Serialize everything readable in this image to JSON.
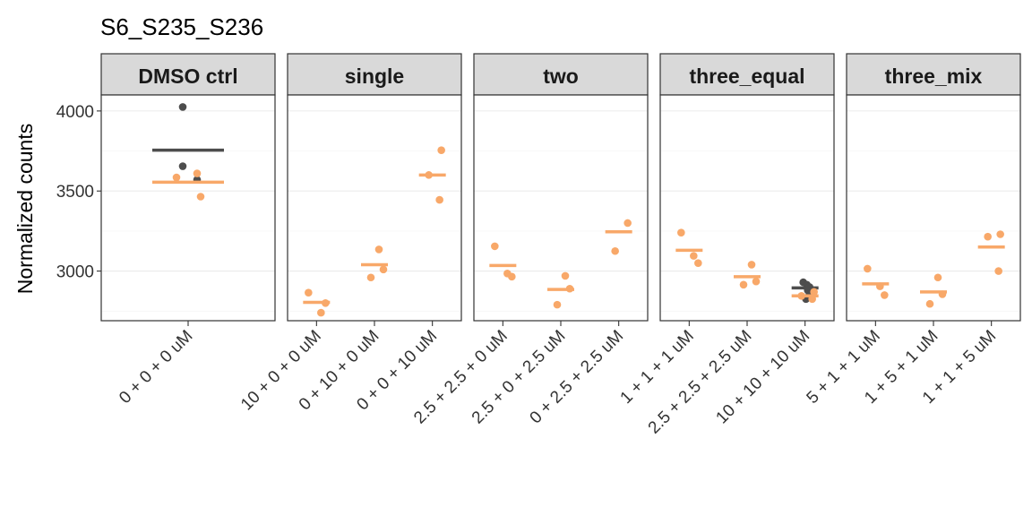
{
  "chart_data": {
    "type": "scatter",
    "title": "S6_S235_S236",
    "ylabel": "Normalized counts",
    "xlabel": "",
    "ylim": [
      2690,
      4100
    ],
    "yticks": [
      3000,
      3500,
      4000
    ],
    "grid": true,
    "legend": "none",
    "colors": {
      "observed": "#4d4d4d",
      "predicted": "#f8a869"
    },
    "panels": [
      {
        "name": "DMSO ctrl",
        "categories": [
          "0 + 0 + 0 uM"
        ],
        "groups": [
          {
            "category": "0 + 0 + 0 uM",
            "points_dark": [
              4025,
              3655,
              3570
            ],
            "points_orange": [
              3610,
              3585,
              3465
            ],
            "mean_dark": 3755,
            "mean_orange": 3555
          }
        ]
      },
      {
        "name": "single",
        "categories": [
          "10 + 0 + 0 uM",
          "0 + 10 + 0 uM",
          "0 + 0 + 10 uM"
        ],
        "groups": [
          {
            "category": "10 + 0 + 0 uM",
            "points_dark": [],
            "points_orange": [
              2865,
              2740,
              2800
            ],
            "mean_dark": null,
            "mean_orange": 2805
          },
          {
            "category": "0 + 10 + 0 uM",
            "points_dark": [],
            "points_orange": [
              3135,
              3010,
              2960
            ],
            "mean_dark": null,
            "mean_orange": 3040
          },
          {
            "category": "0 + 0 + 10 uM",
            "points_dark": [],
            "points_orange": [
              3755,
              3600,
              3445
            ],
            "mean_dark": null,
            "mean_orange": 3600
          }
        ]
      },
      {
        "name": "two",
        "categories": [
          "2.5 + 2.5 + 0 uM",
          "2.5 + 0 + 2.5 uM",
          "0 + 2.5 + 2.5 uM"
        ],
        "groups": [
          {
            "category": "2.5 + 2.5 + 0 uM",
            "points_dark": [],
            "points_orange": [
              3155,
              2985,
              2965
            ],
            "mean_dark": null,
            "mean_orange": 3035
          },
          {
            "category": "2.5 + 0 + 2.5 uM",
            "points_dark": [],
            "points_orange": [
              2970,
              2890,
              2790
            ],
            "mean_dark": null,
            "mean_orange": 2885
          },
          {
            "category": "0 + 2.5 + 2.5 uM",
            "points_dark": [],
            "points_orange": [
              3300,
              3125
            ],
            "mean_dark": null,
            "mean_orange": 3245
          }
        ]
      },
      {
        "name": "three_equal",
        "categories": [
          "1 + 1 + 1 uM",
          "2.5 + 2.5 + 2.5 uM",
          "10 + 10 + 10 uM"
        ],
        "groups": [
          {
            "category": "1 + 1 + 1 uM",
            "points_dark": [],
            "points_orange": [
              3240,
              3095,
              3050
            ],
            "mean_dark": null,
            "mean_orange": 3130
          },
          {
            "category": "2.5 + 2.5 + 2.5 uM",
            "points_dark": [],
            "points_orange": [
              3040,
              2935,
              2915
            ],
            "mean_dark": null,
            "mean_orange": 2965
          },
          {
            "category": "10 + 10 + 10 uM",
            "points_dark": [
              2930,
              2915,
              2900,
              2880,
              2860,
              2840,
              2825
            ],
            "points_orange": [
              2870,
              2845,
              2825
            ],
            "mean_dark": 2895,
            "mean_orange": 2845
          }
        ]
      },
      {
        "name": "three_mix",
        "categories": [
          "5 + 1 + 1 uM",
          "1 + 5 + 1 uM",
          "1 + 1 + 5 uM"
        ],
        "groups": [
          {
            "category": "5 + 1 + 1 uM",
            "points_dark": [],
            "points_orange": [
              3015,
              2905,
              2850
            ],
            "mean_dark": null,
            "mean_orange": 2920
          },
          {
            "category": "1 + 5 + 1 uM",
            "points_dark": [],
            "points_orange": [
              2960,
              2855,
              2795
            ],
            "mean_dark": null,
            "mean_orange": 2870
          },
          {
            "category": "1 + 1 + 5 uM",
            "points_dark": [],
            "points_orange": [
              3230,
              3215,
              3000
            ],
            "mean_dark": null,
            "mean_orange": 3150
          }
        ]
      }
    ]
  }
}
